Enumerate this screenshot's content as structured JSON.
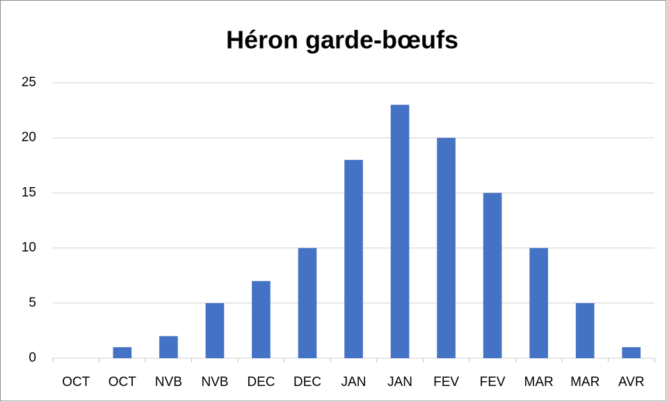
{
  "chart_data": {
    "type": "bar",
    "title": "Héron garde-bœufs",
    "categories": [
      "OCT",
      "OCT",
      "NVB",
      "NVB",
      "DEC",
      "DEC",
      "JAN",
      "JAN",
      "FEV",
      "FEV",
      "MAR",
      "MAR",
      "AVR"
    ],
    "values": [
      0,
      1,
      2,
      5,
      7,
      10,
      18,
      23,
      20,
      15,
      10,
      5,
      1
    ],
    "color": "#4472c4",
    "ylim": [
      0,
      25
    ],
    "yticks": [
      0,
      5,
      10,
      15,
      20,
      25
    ],
    "grid": true
  }
}
